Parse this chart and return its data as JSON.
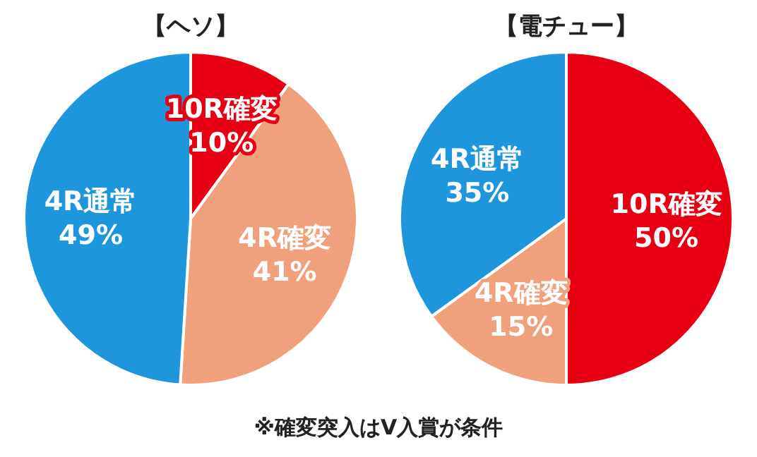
{
  "chart_data": [
    {
      "type": "pie",
      "title": "【ヘソ】",
      "categories": [
        "10R確変",
        "4R確変",
        "4R通常"
      ],
      "values": [
        10,
        41,
        49
      ],
      "colors": [
        "#e60012",
        "#f0a07a",
        "#1e96dc"
      ],
      "value_labels": [
        "10%",
        "41%",
        "49%"
      ]
    },
    {
      "type": "pie",
      "title": "【電チュー】",
      "categories": [
        "10R確変",
        "4R確変",
        "4R通常"
      ],
      "values": [
        50,
        15,
        35
      ],
      "colors": [
        "#e60012",
        "#f0a07a",
        "#1e96dc"
      ],
      "value_labels": [
        "50%",
        "15%",
        "35%"
      ],
      "annotations": [
        "※確変突入はV入賞が条件"
      ]
    }
  ]
}
